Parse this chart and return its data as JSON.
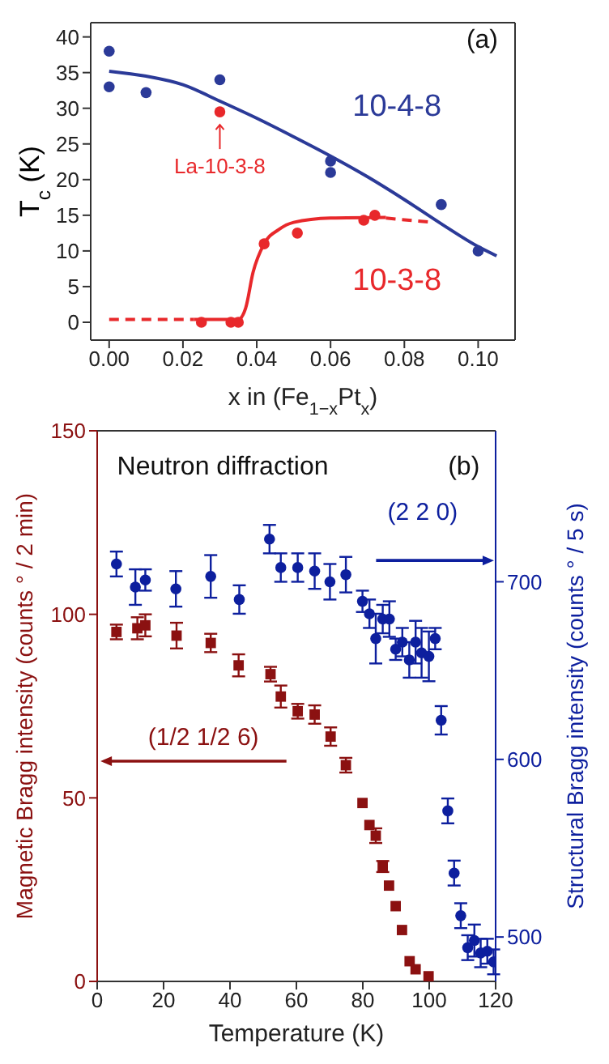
{
  "chart_data": [
    {
      "type": "scatter",
      "xlabel": "x in (Fe$_{1−x}$Pt$_{x}$)",
      "ylabel": "T$_{c}$ (K)",
      "annotations": [
        "(a)",
        {
          "text": "La-10-3-8",
          "x": 0.03,
          "y": 29.5
        }
      ],
      "xlim": [
        -0.005,
        0.11
      ],
      "xticks": [
        {
          "value": 0,
          "label": "0.00"
        },
        {
          "value": 0.02,
          "label": "0.02"
        },
        {
          "value": 0.04,
          "label": "0.04"
        },
        {
          "value": 0.06,
          "label": "0.06"
        },
        {
          "value": 0.08,
          "label": "0.08"
        },
        {
          "value": 0.1,
          "label": "0.10"
        }
      ],
      "ylim": [
        -2.5,
        42
      ],
      "yticks": [
        0,
        5,
        10,
        15,
        20,
        25,
        30,
        35,
        40
      ],
      "series": [
        {
          "name": "10-4-8",
          "marker": "circle",
          "color": "#2b3a98",
          "x": [
            0,
            0,
            0.01,
            0.03,
            0.06,
            0.06,
            0.09,
            0.1
          ],
          "values": [
            38,
            33,
            32.2,
            34,
            22.6,
            21,
            16.5,
            10
          ]
        },
        {
          "type": "line",
          "color": "#2b3a98",
          "x": [
            0,
            0.01,
            0.02,
            0.03,
            0.04,
            0.05,
            0.06,
            0.07,
            0.08,
            0.09,
            0.1,
            0.105
          ],
          "values": [
            35.2,
            34.5,
            33.3,
            31,
            28.6,
            26,
            23.3,
            20.4,
            17.2,
            13.8,
            10.6,
            9.3
          ]
        },
        {
          "name": "10-3-8",
          "marker": "circle",
          "color": "#e8282b",
          "x": [
            0.025,
            0.033,
            0.035,
            0.042,
            0.051,
            0.069,
            0.072
          ],
          "values": [
            0,
            0,
            0,
            11,
            12.5,
            14.3,
            15
          ]
        },
        {
          "type": "line",
          "color": "#e8282b",
          "x": [
            0.023,
            0.035,
            0.037,
            0.039,
            0.042,
            0.046,
            0.05,
            0.06,
            0.075
          ],
          "values": [
            0.4,
            0.4,
            2,
            7,
            11,
            13,
            14,
            14.6,
            14.7
          ]
        },
        {
          "type": "line",
          "color": "#e8282b",
          "line_style": "dashed",
          "x": [
            0,
            0.023
          ],
          "values": [
            0.4,
            0.4
          ]
        },
        {
          "type": "line",
          "color": "#e8282b",
          "line_style": "dashed",
          "x": [
            0.075,
            0.088
          ],
          "values": [
            14.6,
            14
          ]
        },
        {
          "marker": "circle",
          "color": "#e8282b",
          "x": [
            0.03
          ],
          "values": [
            29.5
          ]
        }
      ]
    },
    {
      "type": "scatter",
      "xlabel": "Temperature (K)",
      "ylabel": "Magnetic Bragg intensity (counts ° / 2 min)",
      "y2label": "Structural Bragg intensity (counts ° / 5 s)",
      "annotations": [
        "Neutron diffraction",
        "(b)"
      ],
      "xlim": [
        0,
        120
      ],
      "xticks": [
        0,
        20,
        40,
        60,
        80,
        100,
        120
      ],
      "ylim": [
        0,
        150
      ],
      "yticks": [
        0,
        50,
        100,
        150
      ],
      "y2lim": [
        475,
        785
      ],
      "y2ticks": [
        500,
        600,
        700
      ],
      "series": [
        {
          "name": "(1/2 1/2 6)",
          "marker": "square",
          "color": "#8b1111",
          "x": [
            5.8,
            12.1,
            14.5,
            23.9,
            34.2,
            42.6,
            52.2,
            55.3,
            60.4,
            65.5,
            70.3,
            74.9,
            79.9,
            82,
            83.9,
            86,
            87.9,
            89.9,
            91.8,
            94.1,
            95.9,
            99.8
          ],
          "values": [
            95.2,
            96.2,
            97,
            94.2,
            92.2,
            86.1,
            83.7,
            77.6,
            73.6,
            72.7,
            66.7,
            58.9,
            48.6,
            42.6,
            39.7,
            31.3,
            26.1,
            20.5,
            14,
            5.5,
            3.3,
            1.4
          ],
          "errors": [
            2,
            3,
            3,
            3.5,
            2.5,
            3,
            2,
            3,
            2,
            2.5,
            2.5,
            2,
            null,
            null,
            2,
            1.5,
            null,
            null,
            null,
            null,
            null,
            null
          ]
        },
        {
          "name": "(2 2 0)",
          "axis": "y2",
          "marker": "circle",
          "color": "#0d1f9e",
          "x": [
            5.8,
            11.5,
            14.5,
            23.7,
            34.2,
            42.8,
            51.9,
            55.3,
            60.4,
            65.5,
            70.1,
            74.9,
            79.9,
            82,
            83.9,
            86,
            88,
            89.9,
            91.9,
            94,
            95.9,
            97.7,
            99.9,
            101.8,
            103.6,
            105.6,
            107.5,
            109.5,
            111.6,
            113.6,
            115.5,
            117.5,
            119.4
          ],
          "values": [
            710,
            697,
            701,
            696,
            703,
            690,
            724,
            708,
            708,
            706,
            700,
            704,
            689,
            682,
            668,
            679,
            679,
            662,
            666,
            656,
            666,
            660,
            658,
            668,
            622,
            571,
            536,
            512,
            494,
            498,
            491,
            492,
            486
          ],
          "errors": [
            7,
            10,
            6,
            10,
            12,
            8,
            8,
            8,
            8,
            10,
            10,
            10,
            6,
            8,
            14,
            8,
            10,
            6,
            8,
            10,
            12,
            14,
            14,
            6,
            8,
            7,
            7,
            7,
            7,
            9,
            8,
            7,
            7
          ]
        }
      ]
    }
  ]
}
